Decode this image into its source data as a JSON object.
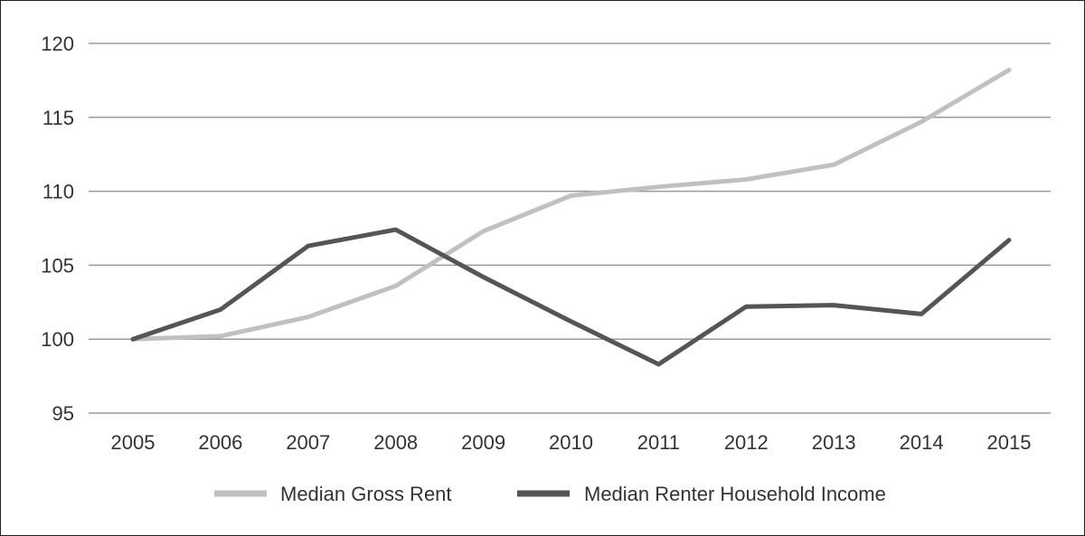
{
  "chart_data": {
    "type": "line",
    "title": "",
    "xlabel": "",
    "ylabel": "",
    "x": [
      2005,
      2006,
      2007,
      2008,
      2009,
      2010,
      2011,
      2012,
      2013,
      2014,
      2015
    ],
    "x_tick_labels": [
      "2005",
      "2006",
      "2007",
      "2008",
      "2009",
      "2010",
      "2011",
      "2012",
      "2013",
      "2014",
      "2015"
    ],
    "y_ticks": [
      95,
      100,
      105,
      110,
      115,
      120
    ],
    "y_tick_labels": [
      "95",
      "100",
      "105",
      "110",
      "115",
      "120"
    ],
    "ylim": [
      95,
      120
    ],
    "grid": "horizontal",
    "legend_position": "bottom",
    "series": [
      {
        "name": "Median Gross Rent",
        "color": "#c0c0c0",
        "values": [
          100.0,
          100.2,
          101.5,
          103.6,
          107.3,
          109.7,
          110.3,
          110.8,
          111.8,
          114.7,
          118.2
        ]
      },
      {
        "name": "Median Renter Household Income",
        "color": "#555555",
        "values": [
          100.0,
          102.0,
          106.3,
          107.4,
          104.2,
          101.2,
          98.3,
          102.2,
          102.3,
          101.7,
          106.7
        ]
      }
    ]
  }
}
